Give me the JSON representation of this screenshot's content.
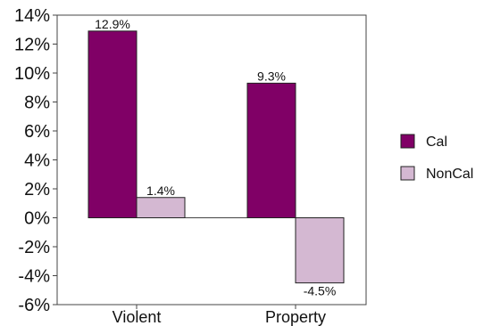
{
  "chart_data": {
    "type": "bar",
    "categories": [
      "Violent",
      "Property"
    ],
    "series": [
      {
        "name": "Cal",
        "values": [
          12.9,
          9.3
        ],
        "labels": [
          "12.9%",
          "9.3%"
        ],
        "color": "#800066"
      },
      {
        "name": "NonCal",
        "values": [
          1.4,
          -4.5
        ],
        "labels": [
          "1.4%",
          "-4.5%"
        ],
        "color": "#D4B8D2"
      }
    ],
    "title": "",
    "xlabel": "",
    "ylabel": "",
    "ylim": [
      -6,
      14
    ],
    "yticks": [
      -6,
      -4,
      -2,
      0,
      2,
      4,
      6,
      8,
      10,
      12,
      14
    ],
    "ytick_labels": [
      "-6%",
      "-4%",
      "-2%",
      "0%",
      "2%",
      "4%",
      "6%",
      "8%",
      "10%",
      "12%",
      "14%"
    ],
    "grid": false,
    "legend": "right",
    "colors": {
      "axis": "#444444",
      "bar_stroke": "#222222"
    }
  }
}
